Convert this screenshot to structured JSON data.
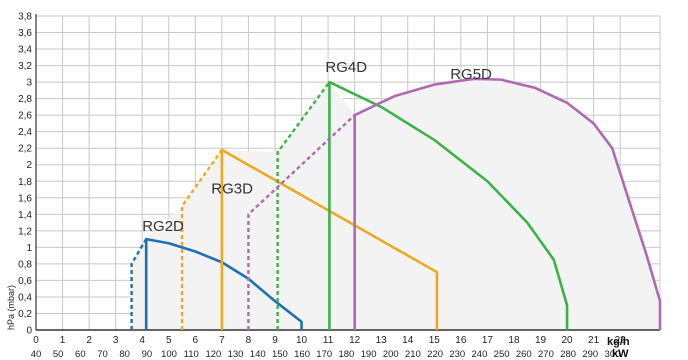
{
  "chart_data": {
    "type": "line",
    "title": "",
    "ylabel": "hPa (mbar)",
    "x_unit_label": "kg/h",
    "x2_unit_label": "kW",
    "xlim": [
      0,
      23.5
    ],
    "ylim": [
      0,
      3.8
    ],
    "x_ticks": [
      0,
      1,
      2,
      3,
      4,
      5,
      6,
      7,
      8,
      9,
      10,
      11,
      12,
      13,
      14,
      15,
      16,
      17,
      18,
      19,
      20,
      21,
      22
    ],
    "y_ticks": [
      "0",
      "0,2",
      "0,4",
      "0,6",
      "0,8",
      "1",
      "1,2",
      "1,4",
      "1,6",
      "1,8",
      "2",
      "2,2",
      "2,4",
      "2,6",
      "2,8",
      "3",
      "3,2",
      "3,4",
      "3,6",
      "3,8"
    ],
    "kw_ticks": [
      40,
      50,
      60,
      70,
      80,
      90,
      100,
      110,
      120,
      130,
      140,
      150,
      160,
      170,
      180,
      190,
      200,
      210,
      220,
      230,
      240,
      250,
      260,
      270,
      280,
      290,
      300
    ],
    "grid": true,
    "colors": {
      "grid": "#c8c8c8",
      "axis": "#333333",
      "area": "#f3f3f3"
    },
    "series": [
      {
        "name": "RG2D",
        "color": "#1f6fb4",
        "label_at": [
          4,
          1.2
        ],
        "dashed": [
          [
            3.6,
            0
          ],
          [
            3.6,
            0.8
          ],
          [
            4.15,
            1.1
          ]
        ],
        "solid": [
          [
            4.15,
            0
          ],
          [
            4.15,
            1.1
          ],
          [
            5,
            1.05
          ],
          [
            6,
            0.95
          ],
          [
            7,
            0.82
          ],
          [
            8,
            0.62
          ],
          [
            9,
            0.35
          ],
          [
            10,
            0.1
          ],
          [
            10,
            0
          ]
        ]
      },
      {
        "name": "RG3D",
        "color": "#f0a824",
        "label_at": [
          6.6,
          1.65
        ],
        "dashed": [
          [
            5.5,
            0
          ],
          [
            5.5,
            1.5
          ],
          [
            7,
            2.18
          ]
        ],
        "solid": [
          [
            7,
            0
          ],
          [
            7,
            2.18
          ],
          [
            15.1,
            0.7
          ],
          [
            15.1,
            0
          ]
        ]
      },
      {
        "name": "RG4D",
        "color": "#3cb34a",
        "label_at": [
          10.9,
          3.12
        ],
        "dashed": [
          [
            9.1,
            0
          ],
          [
            9.1,
            2.15
          ],
          [
            11.05,
            3.0
          ]
        ],
        "solid": [
          [
            11.05,
            0
          ],
          [
            11.05,
            3.0
          ],
          [
            13,
            2.7
          ],
          [
            15,
            2.3
          ],
          [
            17,
            1.8
          ],
          [
            18.5,
            1.3
          ],
          [
            19.5,
            0.85
          ],
          [
            20,
            0.3
          ],
          [
            20,
            0
          ]
        ]
      },
      {
        "name": "RG5D",
        "color": "#b06ab2",
        "label_at": [
          15.6,
          3.04
        ],
        "dashed": [
          [
            8,
            0
          ],
          [
            8,
            1.4
          ],
          [
            12,
            2.6
          ]
        ],
        "solid": [
          [
            12,
            0
          ],
          [
            12,
            2.6
          ],
          [
            13.5,
            2.83
          ],
          [
            15,
            2.97
          ],
          [
            16.5,
            3.04
          ],
          [
            17.5,
            3.03
          ],
          [
            18.8,
            2.93
          ],
          [
            20,
            2.75
          ],
          [
            21,
            2.5
          ],
          [
            21.7,
            2.2
          ],
          [
            22.3,
            1.6
          ],
          [
            23,
            0.9
          ],
          [
            23.5,
            0.35
          ],
          [
            23.5,
            0
          ]
        ]
      }
    ]
  }
}
